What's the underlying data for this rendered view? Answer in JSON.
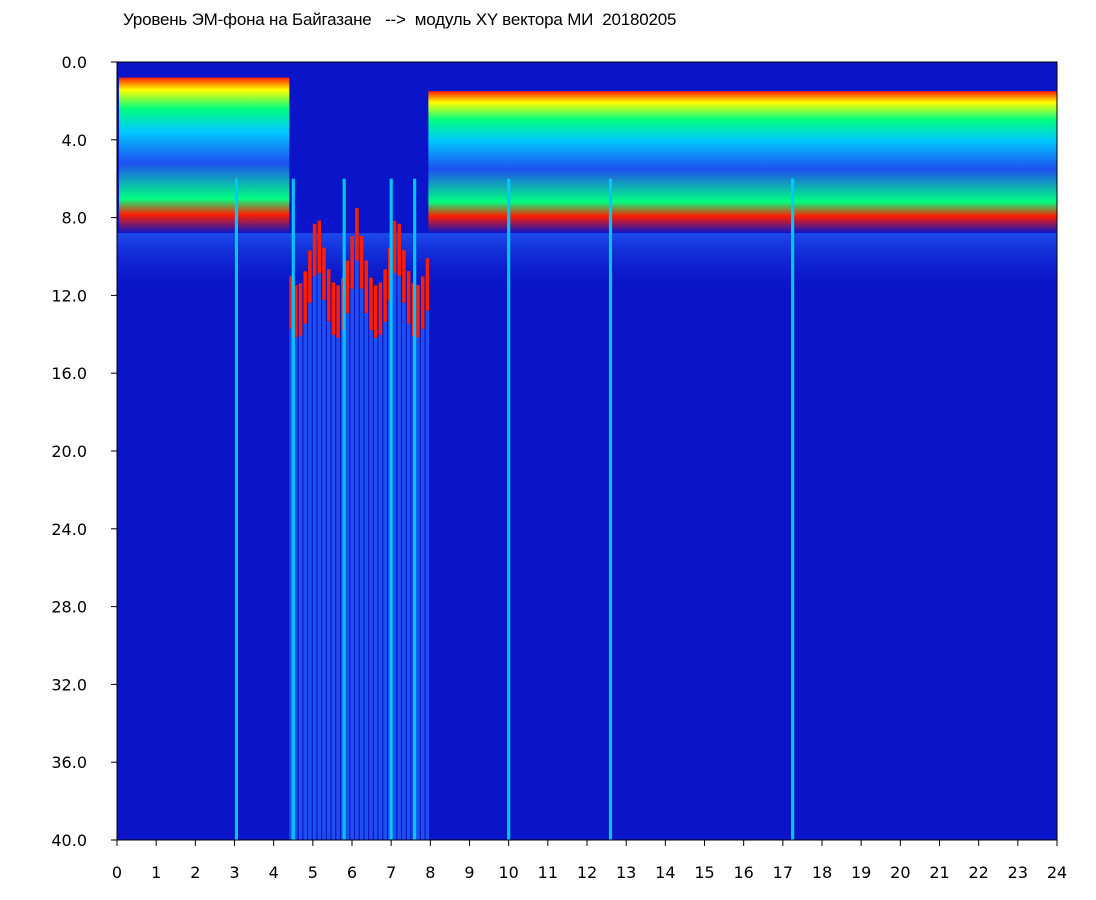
{
  "chart_data": {
    "type": "heatmap",
    "title": "Уровень ЭМ-фона на Байгазане   -->  модуль XY вектора МИ  20180205",
    "x_ticks": [
      "0",
      "1",
      "2",
      "3",
      "4",
      "5",
      "6",
      "7",
      "8",
      "9",
      "10",
      "11",
      "12",
      "13",
      "14",
      "15",
      "16",
      "17",
      "18",
      "19",
      "20",
      "21",
      "22",
      "23",
      "24"
    ],
    "y_ticks": [
      "0.0",
      "4.0",
      "8.0",
      "12.0",
      "16.0",
      "20.0",
      "24.0",
      "28.0",
      "32.0",
      "36.0",
      "40.0"
    ],
    "xlim": [
      0,
      24
    ],
    "ylim": [
      0,
      40
    ],
    "y_inverted": true,
    "colormap": [
      "#0a14c8",
      "#1e50f0",
      "#00c8ff",
      "#00ff80",
      "#ffff00",
      "#ff1e00"
    ],
    "low_activity_hours": [
      4.4,
      7.9
    ],
    "bright_lines_hours": [
      3.05,
      4.5,
      5.8,
      7.0,
      7.6,
      10.0,
      12.6,
      17.25
    ],
    "background_color": "#0a14c8"
  }
}
